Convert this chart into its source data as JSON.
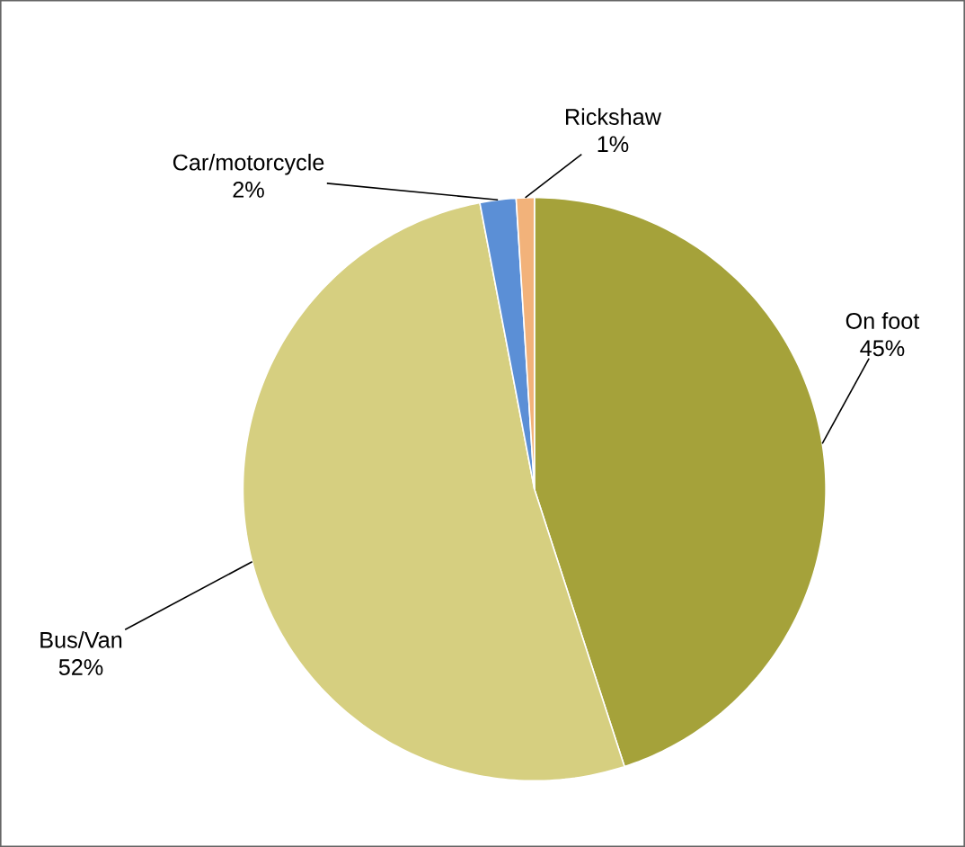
{
  "chart_data": {
    "type": "pie",
    "categories": [
      "On foot",
      "Bus/Van",
      "Car/motorcycle",
      "Rickshaw"
    ],
    "values": [
      45,
      52,
      2,
      1
    ],
    "colors": [
      "#a5a23a",
      "#d6cf80",
      "#5b8fd6",
      "#f2b27a"
    ],
    "value_labels": [
      "45%",
      "52%",
      "2%",
      "1%"
    ]
  }
}
